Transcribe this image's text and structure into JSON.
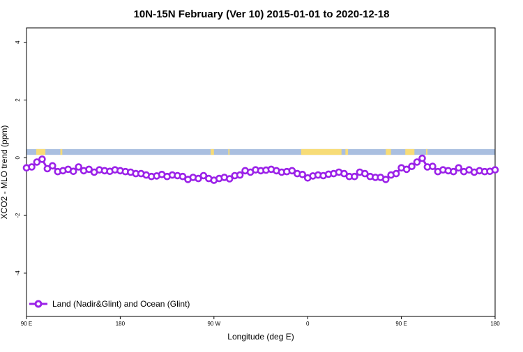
{
  "chart_data": {
    "type": "line",
    "title": "10N-15N February (Ver 10)   2015-01-01 to 2020-12-18",
    "xlabel": "Longitude (deg E)",
    "ylabel": "XCO2 - MLO trend (ppm)",
    "xlim": [
      90,
      450
    ],
    "ylim": [
      -5.5,
      4.5
    ],
    "x_ticks": [
      {
        "value": 90,
        "label": "90 E"
      },
      {
        "value": 162,
        "label": "180"
      },
      {
        "value": 234,
        "label": "90 W"
      },
      {
        "value": 306,
        "label": "0"
      },
      {
        "value": 378,
        "label": "90 E"
      },
      {
        "value": 450,
        "label": "180"
      }
    ],
    "y_ticks": [
      {
        "value": -4,
        "label": "-4"
      },
      {
        "value": -2,
        "label": "-2"
      },
      {
        "value": 0,
        "label": "0"
      },
      {
        "value": 2,
        "label": "2"
      },
      {
        "value": 4,
        "label": "4"
      }
    ],
    "grid": false,
    "legend_position": "bottom-left",
    "colors": {
      "series": "#9b22e8",
      "ocean_band": "#aabfe0",
      "land_band": "#f7dc77"
    },
    "land_ocean_band": {
      "y_range": [
        0.1,
        0.3
      ],
      "land_spans": [
        [
          97.5,
          104.5
        ],
        [
          116,
          117.5
        ],
        [
          231.5,
          234
        ],
        [
          245,
          246
        ],
        [
          301,
          332
        ],
        [
          335,
          337
        ],
        [
          366,
          370
        ],
        [
          381,
          388
        ],
        [
          397,
          398
        ]
      ]
    },
    "series": [
      {
        "name": "Land (Nadir&Glint) and Ocean (Glint)",
        "x": [
          90,
          94,
          98,
          102,
          106,
          110,
          114,
          118,
          122,
          126,
          130,
          134,
          138,
          142,
          146,
          150,
          154,
          158,
          162,
          166,
          170,
          174,
          178,
          182,
          186,
          190,
          194,
          198,
          202,
          206,
          210,
          214,
          218,
          222,
          226,
          230,
          234,
          238,
          242,
          246,
          250,
          254,
          258,
          262,
          266,
          270,
          274,
          278,
          282,
          286,
          290,
          294,
          298,
          302,
          306,
          310,
          314,
          318,
          322,
          326,
          330,
          334,
          338,
          342,
          346,
          350,
          354,
          358,
          362,
          366,
          370,
          374,
          378,
          382,
          386,
          390,
          394,
          398,
          402,
          406,
          410,
          414,
          418,
          422,
          426,
          430,
          434,
          438,
          442,
          446,
          450
        ],
        "values": [
          -0.35,
          -0.32,
          -0.15,
          -0.05,
          -0.38,
          -0.28,
          -0.48,
          -0.45,
          -0.4,
          -0.47,
          -0.32,
          -0.45,
          -0.4,
          -0.5,
          -0.42,
          -0.45,
          -0.47,
          -0.42,
          -0.45,
          -0.48,
          -0.5,
          -0.55,
          -0.55,
          -0.6,
          -0.65,
          -0.63,
          -0.58,
          -0.65,
          -0.6,
          -0.62,
          -0.65,
          -0.75,
          -0.68,
          -0.72,
          -0.62,
          -0.72,
          -0.78,
          -0.72,
          -0.68,
          -0.73,
          -0.62,
          -0.6,
          -0.45,
          -0.5,
          -0.42,
          -0.45,
          -0.43,
          -0.4,
          -0.45,
          -0.5,
          -0.48,
          -0.45,
          -0.55,
          -0.58,
          -0.7,
          -0.63,
          -0.6,
          -0.62,
          -0.57,
          -0.55,
          -0.5,
          -0.55,
          -0.65,
          -0.65,
          -0.5,
          -0.55,
          -0.65,
          -0.68,
          -0.68,
          -0.75,
          -0.6,
          -0.55,
          -0.35,
          -0.4,
          -0.3,
          -0.15,
          -0.02,
          -0.32,
          -0.3,
          -0.48,
          -0.42,
          -0.45,
          -0.48,
          -0.35,
          -0.48,
          -0.42,
          -0.5,
          -0.45,
          -0.48,
          -0.47,
          -0.42
        ]
      }
    ]
  }
}
